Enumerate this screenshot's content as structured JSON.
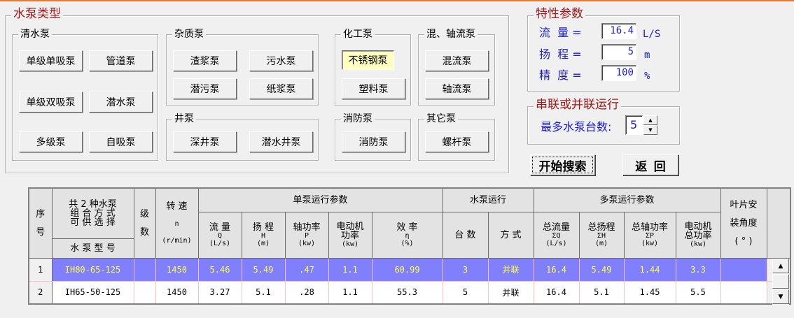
{
  "pump_types": {
    "title": "水泵类型",
    "clear_water": {
      "title": "清水泵",
      "buttons": [
        "单级单吸泵",
        "管道泵",
        "单级双吸泵",
        "潜水泵",
        "多级泵",
        "自吸泵"
      ]
    },
    "impurity": {
      "title": "杂质泵",
      "buttons": [
        "渣浆泵",
        "污水泵",
        "潜污泵",
        "纸浆泵"
      ]
    },
    "well": {
      "title": "井泵",
      "buttons": [
        "深井泵",
        "潜水井泵"
      ]
    },
    "chemical": {
      "title": "化工泵",
      "buttons": [
        "不锈钢泵",
        "塑料泵"
      ],
      "selected": "不锈钢泵"
    },
    "mixed_axial": {
      "title": "混、轴流泵",
      "buttons": [
        "混流泵",
        "轴流泵"
      ]
    },
    "fire": {
      "title": "消防泵",
      "buttons": [
        "消防泵"
      ]
    },
    "other": {
      "title": "其它泵",
      "buttons": [
        "螺杆泵"
      ]
    }
  },
  "characteristics": {
    "title": "特性参数",
    "flow": {
      "label": "流  量 =",
      "value": "16.4",
      "unit": "L/S"
    },
    "head": {
      "label": "扬  程 =",
      "value": "5",
      "unit": "m"
    },
    "precision": {
      "label": "精  度 =",
      "value": "100",
      "unit": "%"
    }
  },
  "series_parallel": {
    "title": "串联或并联运行",
    "max_label": "最多水泵台数:",
    "max_value": "5"
  },
  "actions": {
    "search": "开始搜索",
    "back": "返  回"
  },
  "table": {
    "h": {
      "seq1": "序",
      "seq2": "号",
      "combo1": "共 2 种水泵",
      "combo2": "组 合 方 式",
      "combo3": "可 供 选 择",
      "model": "水 泵 型 号",
      "stage1": "级",
      "stage2": "数",
      "speed1": "转  速",
      "speed2": "n",
      "speed3": "(r/min)",
      "single": "单泵运行参数",
      "run": "水泵运行",
      "multi": "多泵运行参数",
      "blade1": "叶片安",
      "blade2": "装角度",
      "blade3": "( ° )",
      "q1": "流  量",
      "q2": "Q",
      "q3": "(L/s)",
      "hh1": "扬  程",
      "hh2": "H",
      "hh3": "(m)",
      "p1": "轴功率",
      "p2": "P",
      "p3": "(kw)",
      "m1": "电动机",
      "m2": "功率",
      "m3": "(kw)",
      "e1": "效  率",
      "e2": "η",
      "e3": "(%)",
      "cnt": "台  数",
      "mode": "方  式",
      "tq1": "总流量",
      "tq2": "ΣQ",
      "tq3": "(L/s)",
      "th1": "总扬程",
      "th2": "ΣH",
      "th3": "(m)",
      "tp1": "总轴功率",
      "tp2": "ΣP",
      "tp3": "(kw)",
      "tm1": "电动机",
      "tm2": "总功率",
      "tm3": "(kw)"
    },
    "rows": [
      [
        "1",
        "IH80-65-125",
        "",
        "1450",
        "5.46",
        "5.49",
        ".47",
        "1.1",
        "60.99",
        "3",
        "并联",
        "16.4",
        "5.49",
        "1.44",
        "3.3",
        ""
      ],
      [
        "2",
        "IH65-50-125",
        "",
        "1450",
        "3.27",
        "5.1",
        ".28",
        "1.1",
        "55.3",
        "5",
        "并联",
        "16.4",
        "5.1",
        "1.45",
        "5.5",
        ""
      ]
    ],
    "selected_row": 0
  },
  "colors": {
    "accent_title": "#a0161a",
    "label_blue": "#1a1acc",
    "selection_bg": "#8080ff",
    "selection_text": "#ffff40"
  }
}
